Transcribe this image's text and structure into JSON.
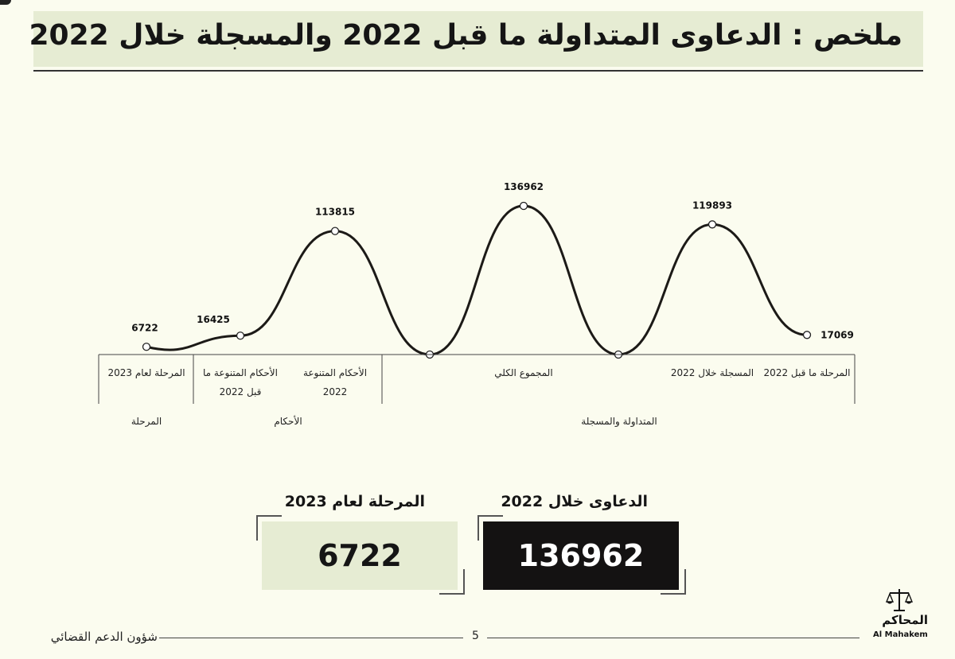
{
  "title": "ملخص : الدعاوى المتداولة ما قبل 2022 والمسجلة خلال 2022",
  "chart_data": {
    "type": "line",
    "points": [
      {
        "label": "المرحلة لعام 2023",
        "value": 6722
      },
      {
        "label": "الأحكام المتنوعة ما قبل 2022",
        "value": 16425
      },
      {
        "label": "الأحكام المتنوعة 2022",
        "value": 113815
      },
      {
        "label": "المجموع الكلي",
        "value": 136962
      },
      {
        "label": "المسجلة خلال 2022",
        "value": 119893
      },
      {
        "label": "المرحلة ما قبل 2022",
        "value": 17069
      }
    ],
    "category_lines": [
      [
        "المرحلة لعام 2023"
      ],
      [
        "الأحكام المتنوعة  ما",
        "قبل 2022"
      ],
      [
        "الأحكام المتنوعة",
        "2022"
      ],
      [
        "المجموع الكلي"
      ],
      [
        "المسجلة خلال 2022"
      ],
      [
        "المرحلة ما قبل 2022"
      ]
    ],
    "groups": [
      "المرحلة",
      "الأحكام",
      "المتداولة والمسجلة"
    ]
  },
  "stats": [
    {
      "title": "الدعاوى خلال 2022",
      "value": "136962",
      "bg": "#141212",
      "fg": "#ffffff"
    },
    {
      "title": "المرحلة لعام 2023",
      "value": "6722",
      "bg": "#e6ecd3",
      "fg": "#151515"
    }
  ],
  "footer": {
    "department": "شؤون الدعم القضائي",
    "page": "5",
    "logo_ar": "المحاكم",
    "logo_en": "Al Mahakem",
    "logo_icon": "scales-of-justice-icon"
  },
  "colors": {
    "background": "#fbfcef",
    "title_band": "#e6ecd3",
    "line": "#1c1a17"
  }
}
